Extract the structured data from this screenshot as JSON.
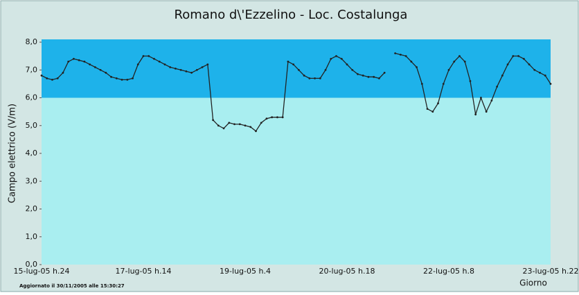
{
  "chart_data": {
    "type": "line",
    "title": "Romano d\\'Ezzelino - Loc. Costalunga",
    "y_label": "Campo elettrico (V/m)",
    "x_label": "Giorno",
    "footer": "Aggiornato il 30/11/2005 alle 15:30:27",
    "ylim": [
      0,
      8.1
    ],
    "yticks": [
      {
        "value": 0,
        "label": "0,0"
      },
      {
        "value": 1,
        "label": "1,0"
      },
      {
        "value": 2,
        "label": "2,0"
      },
      {
        "value": 3,
        "label": "3,0"
      },
      {
        "value": 4,
        "label": "4,0"
      },
      {
        "value": 5,
        "label": "5,0"
      },
      {
        "value": 6,
        "label": "6,0"
      },
      {
        "value": 7,
        "label": "7,0"
      },
      {
        "value": 8,
        "label": "8,0"
      }
    ],
    "grid": false,
    "bands": [
      {
        "from": 6,
        "to": 8.1,
        "color": "#1eb2ea"
      }
    ],
    "categories": [
      "15-lug-05 h.24",
      null,
      null,
      null,
      null,
      null,
      null,
      null,
      null,
      null,
      null,
      null,
      null,
      null,
      null,
      null,
      null,
      null,
      null,
      "17-lug-05 h.14",
      null,
      null,
      null,
      null,
      null,
      null,
      null,
      null,
      null,
      null,
      null,
      null,
      null,
      null,
      null,
      null,
      null,
      null,
      "19-lug-05 h.4",
      null,
      null,
      null,
      null,
      null,
      null,
      null,
      null,
      null,
      null,
      null,
      null,
      null,
      null,
      null,
      null,
      null,
      null,
      "20-lug-05 h.18",
      null,
      null,
      null,
      null,
      null,
      null,
      null,
      null,
      null,
      null,
      null,
      null,
      null,
      null,
      null,
      null,
      null,
      null,
      "22-lug-05 h.8",
      null,
      null,
      null,
      null,
      null,
      null,
      null,
      null,
      null,
      null,
      null,
      null,
      null,
      null,
      null,
      null,
      null,
      null,
      "23-lug-05 h.22"
    ],
    "series": [
      {
        "color": "#222222",
        "values": [
          6.8,
          6.7,
          6.65,
          6.7,
          6.9,
          7.3,
          7.4,
          7.35,
          7.3,
          7.2,
          7.1,
          7.0,
          6.9,
          6.75,
          6.7,
          6.65,
          6.65,
          6.7,
          7.2,
          7.5,
          7.5,
          7.4,
          7.3,
          7.2,
          7.1,
          7.05,
          7.0,
          6.95,
          6.9,
          7.0,
          7.1,
          7.2,
          5.2,
          5.0,
          4.9,
          5.1,
          5.05,
          5.05,
          5.0,
          4.95,
          4.8,
          5.1,
          5.25,
          5.3,
          5.3,
          5.3,
          7.3,
          7.2,
          7.0,
          6.8,
          6.7,
          6.7,
          6.7,
          7.0,
          7.4,
          7.5,
          7.4,
          7.2,
          7.0,
          6.85,
          6.8,
          6.75,
          6.75,
          6.7,
          6.9,
          null,
          7.6,
          7.55,
          7.5,
          7.3,
          7.1,
          6.5,
          5.6,
          5.5,
          5.8,
          6.5,
          7.0,
          7.3,
          7.5,
          7.3,
          6.6,
          5.4,
          6.0,
          5.5,
          5.9,
          6.4,
          6.8,
          7.2,
          7.5,
          7.5,
          7.4,
          7.2,
          7.0,
          6.9,
          6.8,
          6.5
        ]
      }
    ]
  }
}
